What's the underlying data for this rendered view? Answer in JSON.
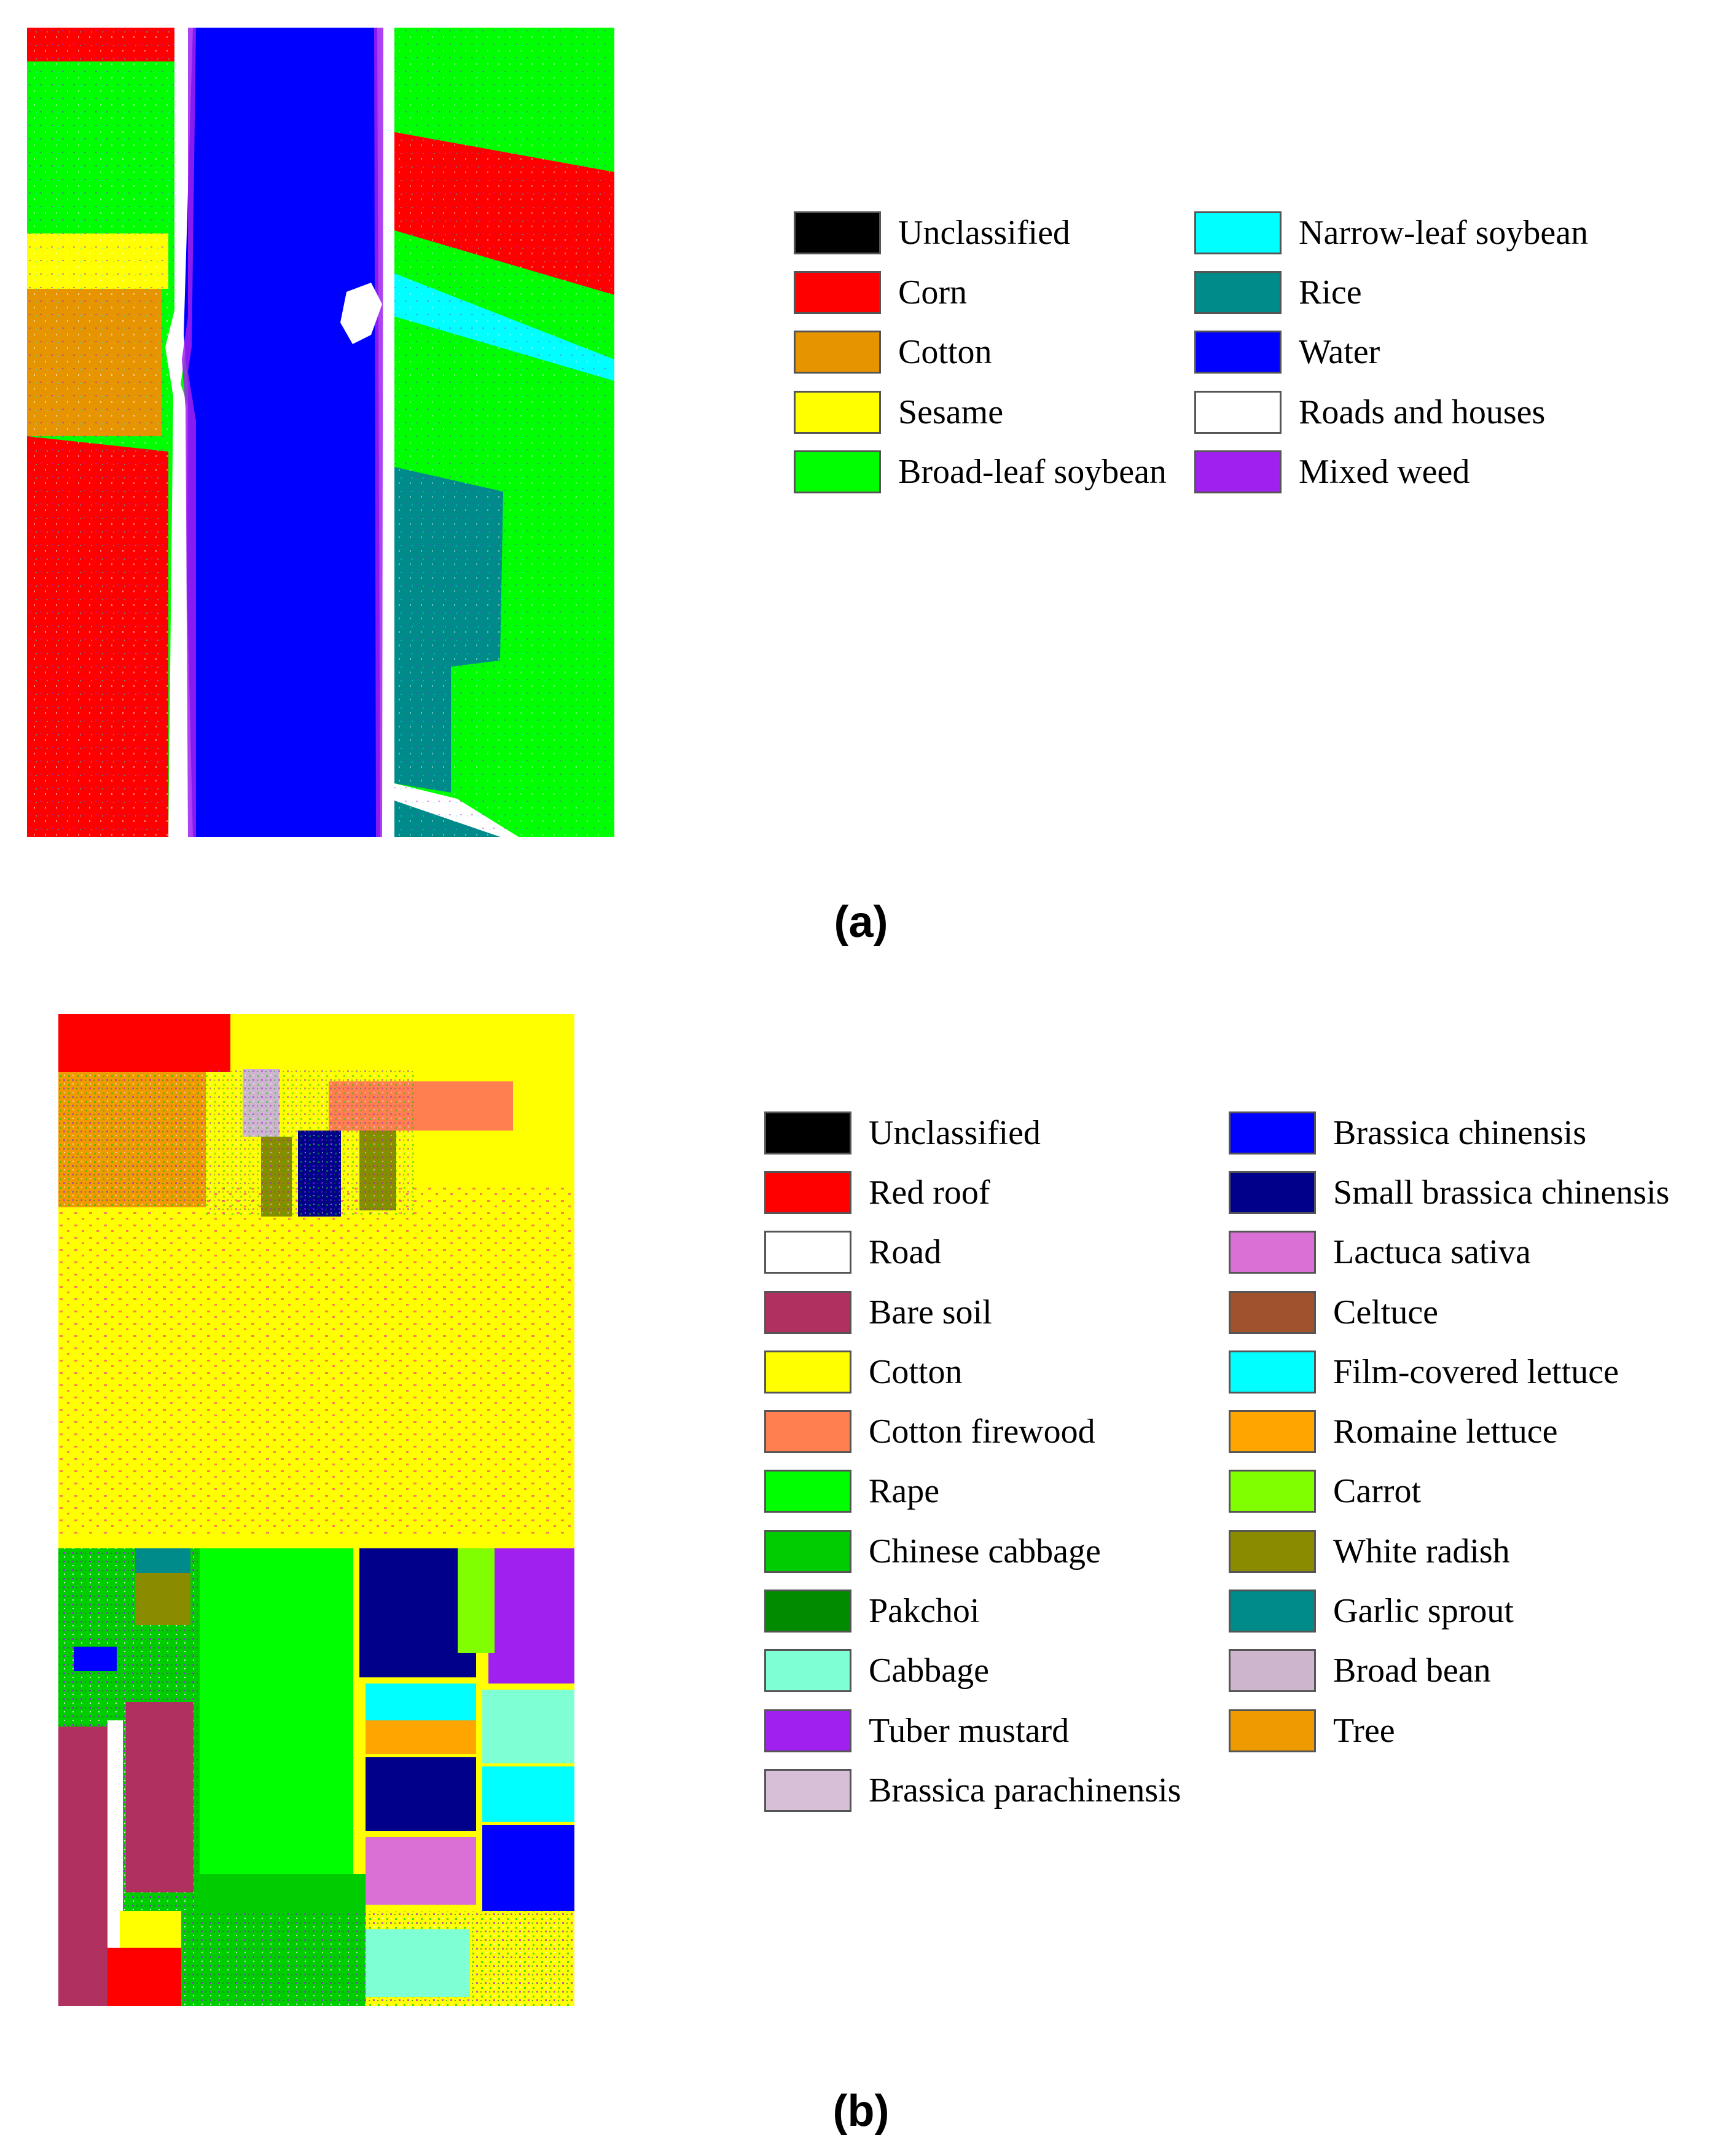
{
  "panels": [
    {
      "caption": "(a)",
      "legend": {
        "columns": [
          [
            {
              "label": "Unclassified",
              "color": "#000000"
            },
            {
              "label": "Corn",
              "color": "#ff0000"
            },
            {
              "label": "Cotton",
              "color": "#e69500"
            },
            {
              "label": "Sesame",
              "color": "#ffff00"
            },
            {
              "label": "Broad-leaf soybean",
              "color": "#00ff00"
            }
          ],
          [
            {
              "label": "Narrow-leaf soybean",
              "color": "#00ffff"
            },
            {
              "label": "Rice",
              "color": "#008b8b"
            },
            {
              "label": "Water",
              "color": "#0000ff"
            },
            {
              "label": "Roads and houses",
              "color": "#ffffff"
            },
            {
              "label": "Mixed weed",
              "color": "#a020f0"
            }
          ]
        ]
      }
    },
    {
      "caption": "(b)",
      "legend": {
        "columns": [
          [
            {
              "label": "Unclassified",
              "color": "#000000"
            },
            {
              "label": "Red roof",
              "color": "#ff0000"
            },
            {
              "label": "Road",
              "color": "#ffffff"
            },
            {
              "label": "Bare soil",
              "color": "#b03060"
            },
            {
              "label": "Cotton",
              "color": "#ffff00"
            },
            {
              "label": "Cotton firewood",
              "color": "#ff7f50"
            },
            {
              "label": "Rape",
              "color": "#00ff00"
            },
            {
              "label": "Chinese cabbage",
              "color": "#00cd00"
            },
            {
              "label": "Pakchoi",
              "color": "#008b00"
            },
            {
              "label": "Cabbage",
              "color": "#7fffd4"
            },
            {
              "label": "Tuber mustard",
              "color": "#a020f0"
            },
            {
              "label": "Brassica parachinensis",
              "color": "#d8bfd8"
            }
          ],
          [
            {
              "label": "Brassica chinensis",
              "color": "#0000ff"
            },
            {
              "label": "Small brassica chinensis",
              "color": "#00008b"
            },
            {
              "label": "Lactuca sativa",
              "color": "#da70d6"
            },
            {
              "label": "Celtuce",
              "color": "#a0522d"
            },
            {
              "label": "Film-covered lettuce",
              "color": "#00ffff"
            },
            {
              "label": "Romaine lettuce",
              "color": "#ffa500"
            },
            {
              "label": "Carrot",
              "color": "#7fff00"
            },
            {
              "label": "White radish",
              "color": "#8b8b00"
            },
            {
              "label": "Garlic sprout",
              "color": "#008b8b"
            },
            {
              "label": "Broad bean",
              "color": "#cdb5cd"
            },
            {
              "label": "Tree",
              "color": "#ee9a00"
            }
          ]
        ]
      }
    }
  ]
}
